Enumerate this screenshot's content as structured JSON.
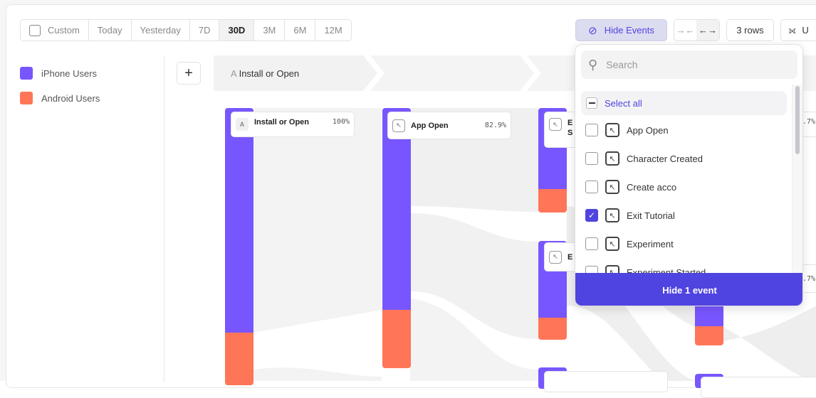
{
  "toolbar": {
    "date_ranges": [
      "Custom",
      "Today",
      "Yesterday",
      "7D",
      "30D",
      "3M",
      "6M",
      "12M"
    ],
    "active_range": "30D",
    "hide_events": "Hide Events",
    "rows": "3 rows",
    "last_button": "U"
  },
  "legend": [
    {
      "label": "iPhone Users",
      "color": "#7856ff"
    },
    {
      "label": "Android Users",
      "color": "#ff7557"
    }
  ],
  "steps": {
    "add": "+",
    "first_letter": "A",
    "first_label": "Install or Open"
  },
  "nodes": [
    {
      "icon": "A",
      "label": "Install or Open",
      "pct": "100%"
    },
    {
      "label": "App Open",
      "pct": "82.9%"
    },
    {
      "label": "E",
      "label2": "S"
    },
    {
      "label": "E"
    },
    {
      "pct": ".7%"
    },
    {
      "pct": ".7%"
    }
  ],
  "dropdown": {
    "search_placeholder": "Search",
    "select_all": "Select all",
    "items": [
      {
        "label": "App Open",
        "checked": false
      },
      {
        "label": "Character Created",
        "checked": false
      },
      {
        "label": "Create acco",
        "checked": false
      },
      {
        "label": "Exit Tutorial",
        "checked": true
      },
      {
        "label": "Experiment",
        "checked": false
      },
      {
        "label": "Experiment Started",
        "checked": false
      }
    ],
    "action": "Hide 1 event"
  },
  "colors": {
    "iphone": "#7856ff",
    "android": "#ff7557",
    "accent": "#5044e0"
  }
}
